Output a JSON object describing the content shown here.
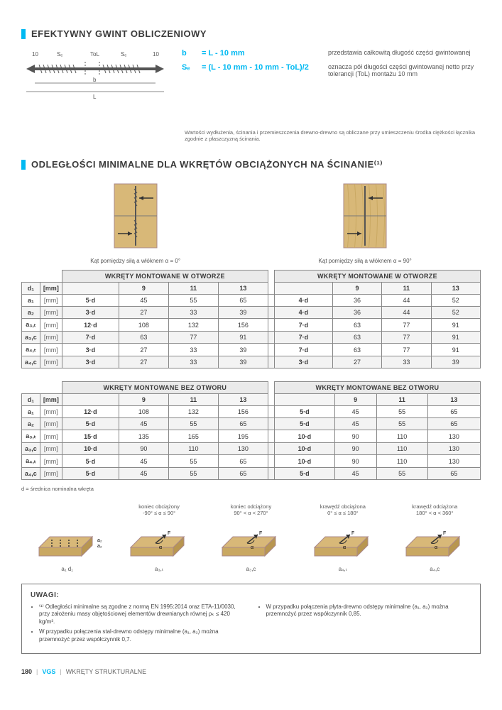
{
  "section1": {
    "title": "EFEKTYWNY GWINT OBLICZENIOWY",
    "formulas": [
      {
        "sym": "b",
        "eq": "= L - 10 mm",
        "desc": "przedstawia całkowitą długość części gwintowanej"
      },
      {
        "sym": "Sₑ",
        "eq": "= (L - 10 mm - 10 mm - ToL)/2",
        "desc": "oznacza pół długości części gwintowanej netto przy tolerancji (ToL) montażu 10 mm"
      }
    ],
    "note": "Wartości wydłużenia, ścinania i przemieszczenia drewno-drewno są obliczane przy umieszczeniu środka ciężkości łącznika zgodnie z płaszczyzną ścinania.",
    "diagramLabels": {
      "left10": "10",
      "Se1": "Sₑ",
      "tol": "ToL",
      "Se2": "Sₑ",
      "right10": "10",
      "b": "b",
      "L": "L"
    }
  },
  "section2": {
    "title": "ODLEGŁOŚCI MINIMALNE DLA WKRĘTÓW OBCIĄŻONYCH NA ŚCINANIE⁽¹⁾",
    "captions": {
      "left": "Kąt pomiędzy siłą a włóknem α = 0°",
      "right": "Kąt pomiędzy siłą a włóknem α = 90°"
    },
    "colors": {
      "wood": "#d8b878",
      "wood_dark": "#c9a862",
      "accent": "#00b9f2",
      "text": "#3a3a3a",
      "grid": "#e8e8e8",
      "border": "#888"
    },
    "table1": {
      "group_left": "WKRĘTY MONTOWANE W OTWORZE",
      "group_right": "WKRĘTY MONTOWANE W OTWORZE",
      "cols": [
        "9",
        "11",
        "13"
      ],
      "rows": [
        {
          "sym": "d₁",
          "unit": "[mm]",
          "shade": false
        },
        {
          "sym": "a₁",
          "unit": "[mm]",
          "l": [
            "5·d",
            "45",
            "55",
            "65"
          ],
          "r": [
            "4·d",
            "36",
            "44",
            "52"
          ],
          "shade": false
        },
        {
          "sym": "a₂",
          "unit": "[mm]",
          "l": [
            "3·d",
            "27",
            "33",
            "39"
          ],
          "r": [
            "4·d",
            "36",
            "44",
            "52"
          ],
          "shade": true
        },
        {
          "sym": "a₃,ₜ",
          "unit": "[mm]",
          "l": [
            "12·d",
            "108",
            "132",
            "156"
          ],
          "r": [
            "7·d",
            "63",
            "77",
            "91"
          ],
          "shade": false
        },
        {
          "sym": "a₃,c",
          "unit": "[mm]",
          "l": [
            "7·d",
            "63",
            "77",
            "91"
          ],
          "r": [
            "7·d",
            "63",
            "77",
            "91"
          ],
          "shade": true
        },
        {
          "sym": "a₄,ₜ",
          "unit": "[mm]",
          "l": [
            "3·d",
            "27",
            "33",
            "39"
          ],
          "r": [
            "7·d",
            "63",
            "77",
            "91"
          ],
          "shade": false
        },
        {
          "sym": "a₄,c",
          "unit": "[mm]",
          "l": [
            "3·d",
            "27",
            "33",
            "39"
          ],
          "r": [
            "3·d",
            "27",
            "33",
            "39"
          ],
          "shade": true
        }
      ]
    },
    "table2": {
      "group_left": "WKRĘTY MONTOWANE BEZ OTWORU",
      "group_right": "WKRĘTY MONTOWANE BEZ OTWORU",
      "cols": [
        "9",
        "11",
        "13"
      ],
      "rows": [
        {
          "sym": "d₁",
          "unit": "[mm]",
          "shade": false
        },
        {
          "sym": "a₁",
          "unit": "[mm]",
          "l": [
            "12·d",
            "108",
            "132",
            "156"
          ],
          "r": [
            "5·d",
            "45",
            "55",
            "65"
          ],
          "shade": false
        },
        {
          "sym": "a₂",
          "unit": "[mm]",
          "l": [
            "5·d",
            "45",
            "55",
            "65"
          ],
          "r": [
            "5·d",
            "45",
            "55",
            "65"
          ],
          "shade": true
        },
        {
          "sym": "a₃,ₜ",
          "unit": "[mm]",
          "l": [
            "15·d",
            "135",
            "165",
            "195"
          ],
          "r": [
            "10·d",
            "90",
            "110",
            "130"
          ],
          "shade": false
        },
        {
          "sym": "a₃,c",
          "unit": "[mm]",
          "l": [
            "10·d",
            "90",
            "110",
            "130"
          ],
          "r": [
            "10·d",
            "90",
            "110",
            "130"
          ],
          "shade": true
        },
        {
          "sym": "a₄,ₜ",
          "unit": "[mm]",
          "l": [
            "5·d",
            "45",
            "55",
            "65"
          ],
          "r": [
            "10·d",
            "90",
            "110",
            "130"
          ],
          "shade": false
        },
        {
          "sym": "a₄,c",
          "unit": "[mm]",
          "l": [
            "5·d",
            "45",
            "55",
            "65"
          ],
          "r": [
            "5·d",
            "45",
            "55",
            "65"
          ],
          "shade": true
        }
      ]
    },
    "d_note": "d = średnica nominalna wkręta",
    "iso": [
      {
        "cap": "",
        "sub": "a₁   d₁"
      },
      {
        "cap": "koniec obciążony\n-90° ≤ α ≤ 90°",
        "sub": "a₃,ₜ"
      },
      {
        "cap": "koniec odciążony\n90° < α < 270°",
        "sub": "a₃,c"
      },
      {
        "cap": "krawędź obciążona\n0° ≤ α ≤ 180°",
        "sub": "a₄,ₜ"
      },
      {
        "cap": "krawędź odciążona\n180° < α < 360°",
        "sub": "a₄,c"
      }
    ]
  },
  "uwagi": {
    "title": "UWAGI:",
    "left": [
      "⁽¹⁾ Odległości minimalne są zgodne z normą EN 1995:2014 oraz ETA-11/0030, przy założeniu masy objętościowej elementów drewnianych równej ρₖ ≤ 420 kg/m³.",
      "W przypadku połączenia stal-drewno odstępy minimalne (a₁, a₂) można przemnożyć przez współczynnik 0,7."
    ],
    "right": [
      "W przypadku połączenia płyta-drewno odstępy minimalne (a₁, a₂) można przemnożyć przez współczynnik 0,85."
    ]
  },
  "footer": {
    "page": "180",
    "prod": "VGS",
    "cat": "WKRĘTY STRUKTURALNE"
  }
}
